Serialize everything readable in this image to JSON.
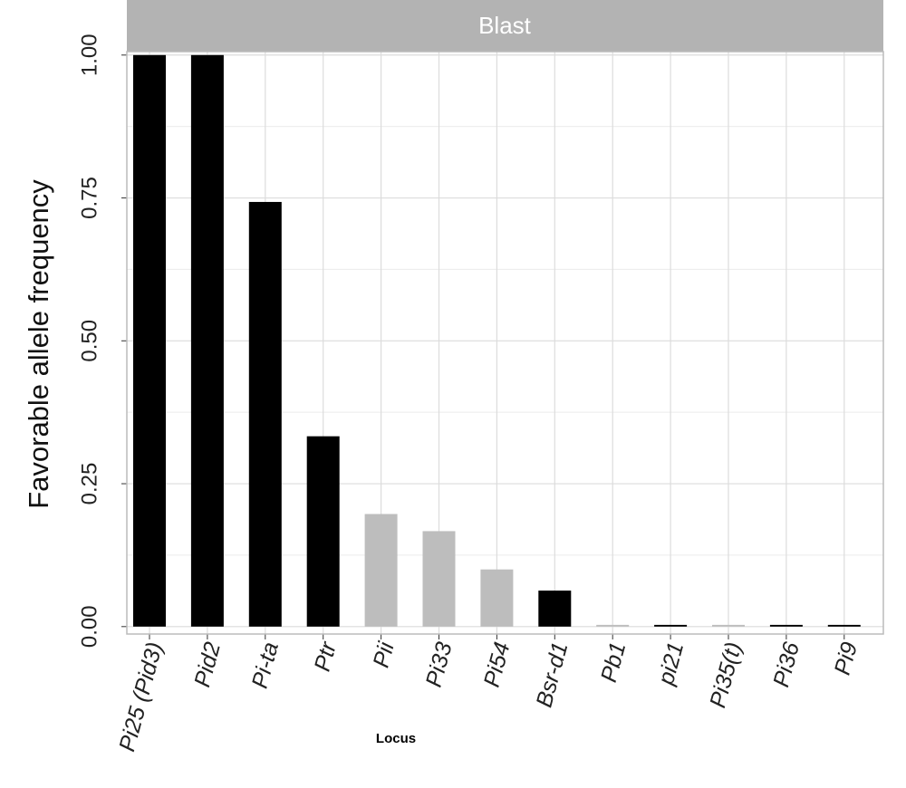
{
  "chart_data": {
    "type": "bar",
    "strip_label": "Blast",
    "x_label": "Locus",
    "y_label": "Favorable allele frequency",
    "categories": [
      "Pi25 (Pid3)",
      "Pid2",
      "Pi-ta",
      "Ptr",
      "Pii",
      "Pi33",
      "Pi54",
      "Bsr-d1",
      "Pb1",
      "pi21",
      "Pi35(t)",
      "Pi36",
      "Pi9"
    ],
    "values": [
      1.0,
      1.0,
      0.743,
      0.333,
      0.197,
      0.167,
      0.1,
      0.063,
      0.003,
      0.003,
      0.003,
      0.003,
      0.003
    ],
    "colors": [
      "#000000",
      "#000000",
      "#000000",
      "#000000",
      "#bdbdbd",
      "#bdbdbd",
      "#bdbdbd",
      "#000000",
      "#bdbdbd",
      "#000000",
      "#bdbdbd",
      "#000000",
      "#000000"
    ],
    "ylim": [
      -0.013,
      1.006
    ],
    "yticks": [
      {
        "value": 0,
        "label": "0.00"
      },
      {
        "value": 0.25,
        "label": "0.25"
      },
      {
        "value": 0.5,
        "label": "0.50"
      },
      {
        "value": 0.75,
        "label": "0.75"
      },
      {
        "value": 1,
        "label": "1.00"
      }
    ],
    "grid": true
  }
}
